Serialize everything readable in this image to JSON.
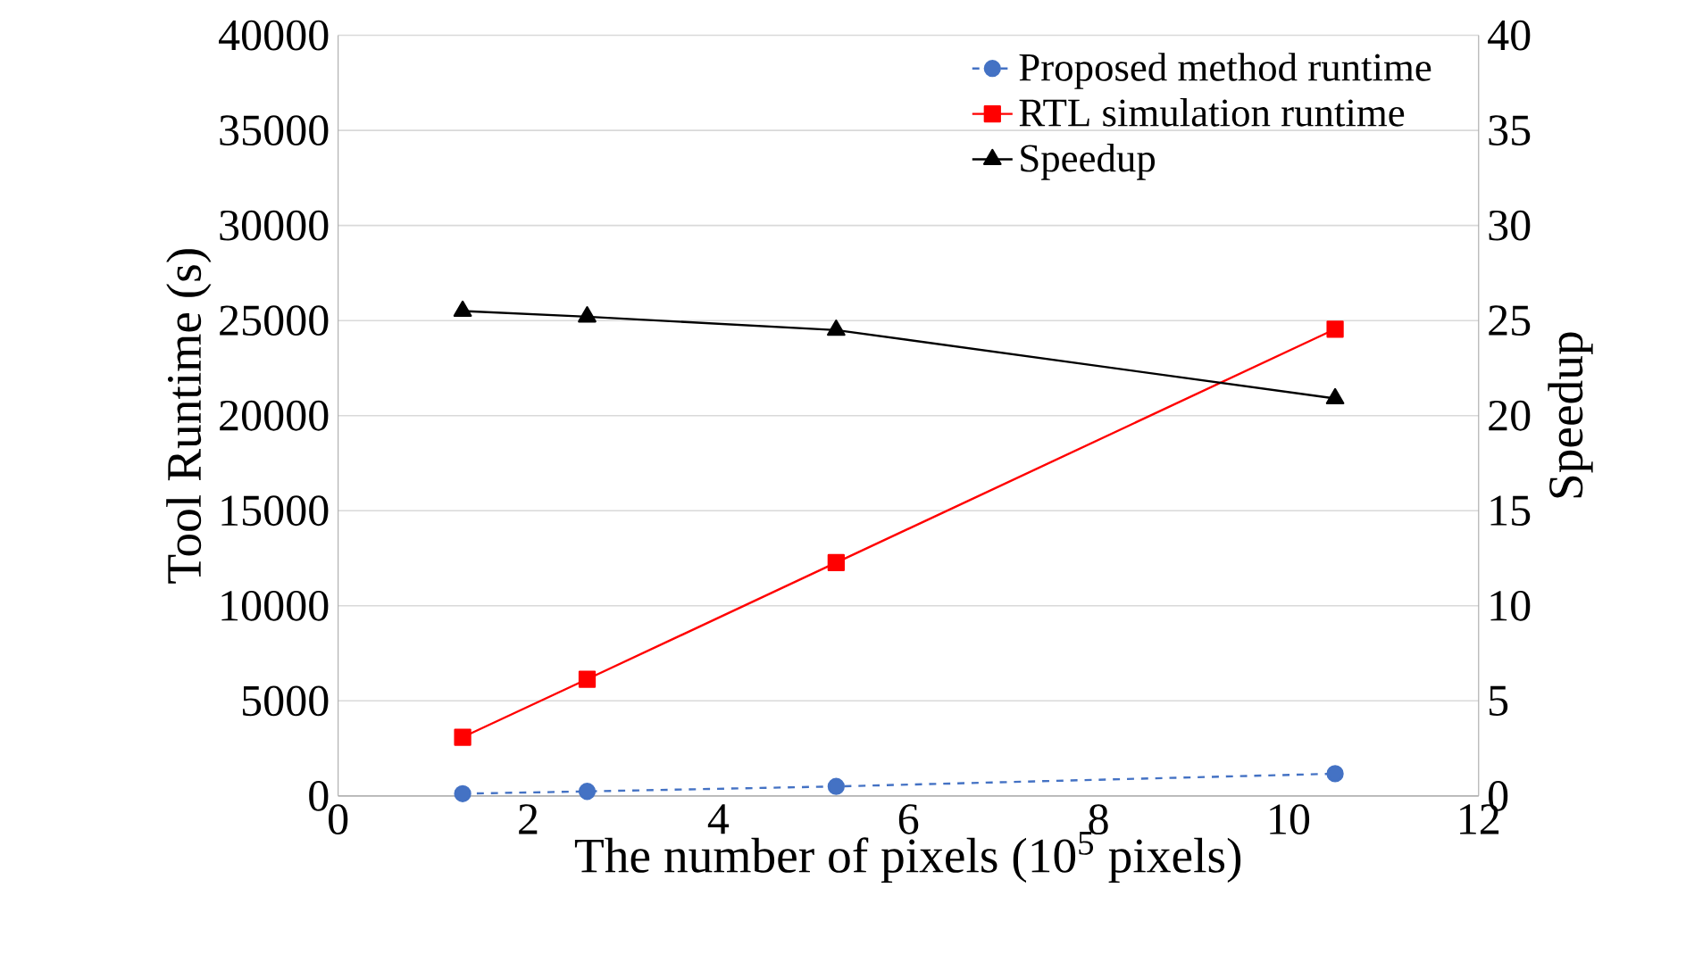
{
  "chart_data": {
    "type": "line",
    "xlabel": "The number of pixels (10$^{5}$ pixels)",
    "ylabel": "Tool Runtime (s)",
    "y2label": "Speedup",
    "x": [
      1.31,
      2.62,
      5.24,
      10.49
    ],
    "series": [
      {
        "name": "Proposed method runtime",
        "color": "#4472c4",
        "values": [
          120,
          240,
          500,
          1170
        ],
        "marker": "circle",
        "line_style": "dashed"
      },
      {
        "name": "RTL simulation runtime",
        "color": "#ff0000",
        "values": [
          3090,
          6140,
          12270,
          24550
        ],
        "marker": "square",
        "line_style": "solid"
      },
      {
        "name": "Speedup",
        "color": "#000000",
        "values": [
          25.5,
          25.2,
          24.5,
          20.9
        ],
        "marker": "triangle",
        "line_style": "solid",
        "axis": "y2"
      }
    ],
    "xlim": [
      0,
      12
    ],
    "xticks": [
      0,
      2,
      4,
      6,
      8,
      10,
      12
    ],
    "ylim": [
      0,
      40000
    ],
    "yticks": [
      0,
      5000,
      10000,
      15000,
      20000,
      25000,
      30000,
      35000,
      40000
    ],
    "y2lim": [
      0,
      40
    ],
    "y2ticks": [
      0,
      5,
      10,
      15,
      20,
      25,
      30,
      35,
      40
    ],
    "grid": "y",
    "legend": "top right"
  }
}
